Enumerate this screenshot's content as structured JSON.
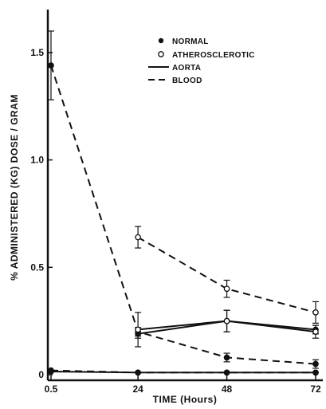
{
  "chart_data": {
    "type": "line",
    "title": "",
    "xlabel": "TIME  (Hours)",
    "ylabel": "% ADMINISTERED (KG) DOSE / GRAM",
    "x_ticks": [
      {
        "value": 0.5,
        "label": "0.5"
      },
      {
        "value": 24,
        "label": "24"
      },
      {
        "value": 48,
        "label": "48"
      },
      {
        "value": 72,
        "label": "72"
      }
    ],
    "y_ticks": [
      {
        "value": 0,
        "label": "0"
      },
      {
        "value": 0.5,
        "label": "0.5"
      },
      {
        "value": 1.0,
        "label": "1.0"
      },
      {
        "value": 1.5,
        "label": "1.5"
      }
    ],
    "xlim": [
      0.5,
      72
    ],
    "ylim": [
      0,
      1.7
    ],
    "grid": false,
    "legend_position": "top-right",
    "legend": {
      "normal": "NORMAL",
      "athero": "ATHEROSCLEROTIC",
      "aorta": "AORTA",
      "blood": "BLOOD"
    },
    "series": [
      {
        "name": "NORMAL",
        "group": "normal",
        "tissue": "blood",
        "line": "dashed",
        "marker": "filled",
        "x": [
          0.5,
          24,
          48,
          72
        ],
        "y": [
          1.44,
          0.2,
          0.08,
          0.05
        ],
        "err": [
          0.16,
          0.02,
          0.02,
          0.02
        ]
      },
      {
        "name": "ATHEROSCLEROTIC",
        "group": "athero",
        "tissue": "blood",
        "line": "dashed",
        "marker": "open",
        "x": [
          24,
          48,
          72
        ],
        "y": [
          0.64,
          0.4,
          0.29
        ],
        "err": [
          0.05,
          0.04,
          0.05
        ]
      },
      {
        "name": "NORMAL",
        "group": "normal",
        "tissue": "aorta",
        "line": "solid",
        "marker": "filled",
        "x": [
          24,
          48,
          72
        ],
        "y": [
          0.19,
          0.25,
          0.21
        ],
        "err": [
          0.02,
          0.05,
          0.02
        ]
      },
      {
        "name": "ATHEROSCLEROTIC",
        "group": "athero",
        "tissue": "aorta",
        "line": "solid",
        "marker": "open",
        "x": [
          24,
          48,
          72
        ],
        "y": [
          0.21,
          0.25,
          0.2
        ],
        "err": [
          0.08,
          0.05,
          0.03
        ]
      },
      {
        "name": "NORMAL",
        "group": "normal",
        "tissue": "baseline",
        "line": "solid",
        "marker": "filled",
        "x": [
          0.5,
          24,
          48,
          72
        ],
        "y": [
          0.015,
          0.01,
          0.01,
          0.01
        ],
        "err": [
          0,
          0,
          0,
          0
        ]
      },
      {
        "name": "NORMAL",
        "group": "normal",
        "tissue": "baseline",
        "line": "dashed",
        "marker": "filled",
        "x": [
          0.5,
          24,
          48,
          72
        ],
        "y": [
          0.02,
          0.01,
          0.01,
          0.01
        ],
        "err": [
          0,
          0,
          0,
          0
        ]
      }
    ]
  }
}
